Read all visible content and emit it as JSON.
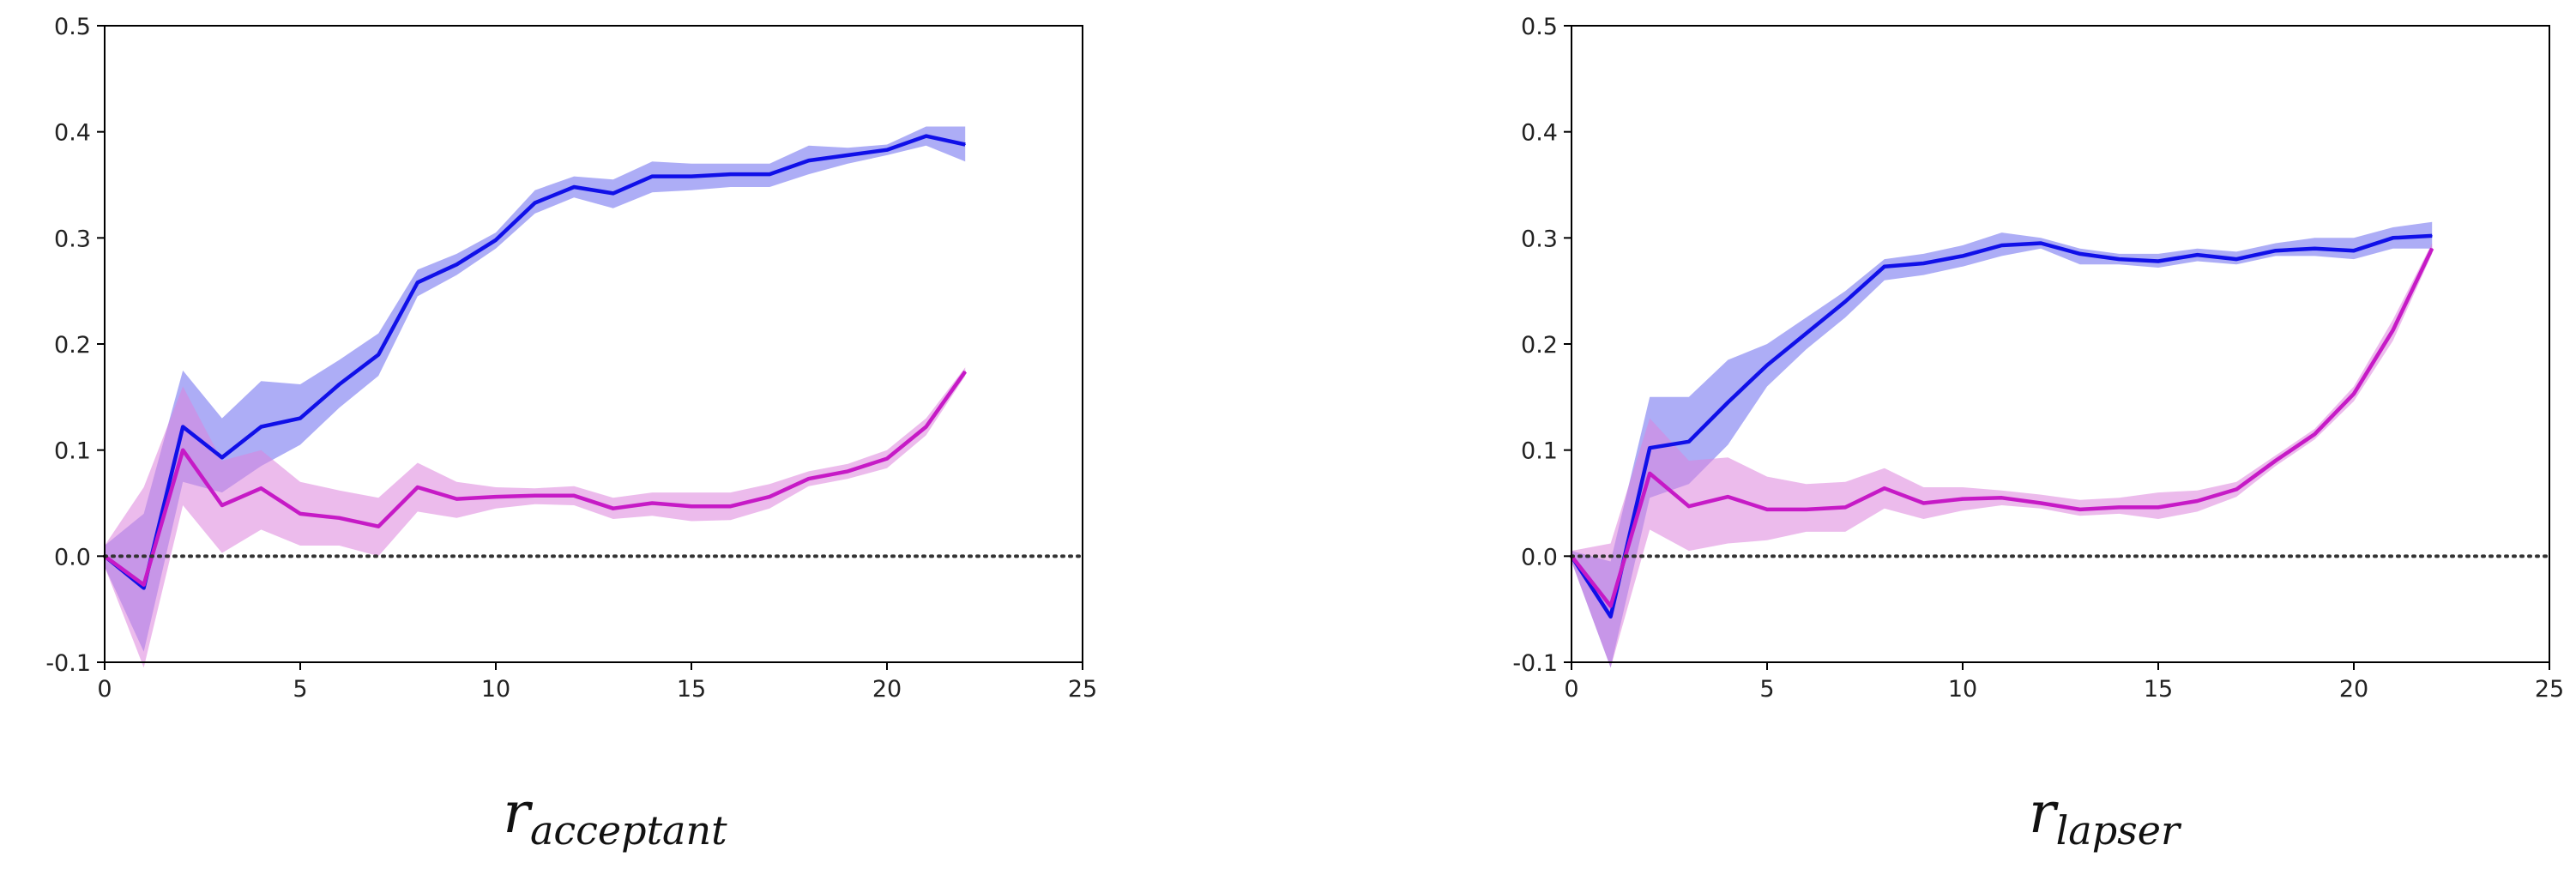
{
  "colors": {
    "blue_line": "#1010e8",
    "blue_band": "#6a6aee",
    "magenta_line": "#c61ac6",
    "magenta_band": "#dc84dc",
    "axis": "#000000",
    "zero_line": "#333333"
  },
  "chart_data": [
    {
      "type": "line",
      "title": "",
      "caption_base": "r",
      "caption_sub": "acceptant",
      "xlabel": "",
      "ylabel": "",
      "xlim": [
        0,
        25
      ],
      "ylim": [
        -0.1,
        0.5
      ],
      "xticks": [
        "0",
        "5",
        "10",
        "15",
        "20",
        "25"
      ],
      "yticks": [
        "-0.1",
        "0.0",
        "0.1",
        "0.2",
        "0.3",
        "0.4",
        "0.5"
      ],
      "reference_line": 0.0,
      "x": [
        0,
        1,
        2,
        3,
        4,
        5,
        6,
        7,
        8,
        9,
        10,
        11,
        12,
        13,
        14,
        15,
        16,
        17,
        18,
        19,
        20,
        21,
        22
      ],
      "series": [
        {
          "name": "blue",
          "color_key": "blue_line",
          "band_color_key": "blue_band",
          "values": [
            0.0,
            -0.03,
            0.122,
            0.093,
            0.122,
            0.13,
            0.162,
            0.19,
            0.258,
            0.275,
            0.298,
            0.333,
            0.348,
            0.342,
            0.358,
            0.358,
            0.36,
            0.36,
            0.373,
            0.378,
            0.383,
            0.396,
            0.388
          ],
          "upper": [
            0.01,
            0.04,
            0.175,
            0.13,
            0.165,
            0.162,
            0.185,
            0.21,
            0.27,
            0.285,
            0.305,
            0.345,
            0.358,
            0.355,
            0.372,
            0.37,
            0.37,
            0.37,
            0.387,
            0.385,
            0.388,
            0.405,
            0.405
          ],
          "lower": [
            -0.01,
            -0.09,
            0.07,
            0.06,
            0.085,
            0.105,
            0.14,
            0.17,
            0.245,
            0.265,
            0.29,
            0.323,
            0.338,
            0.328,
            0.343,
            0.345,
            0.348,
            0.348,
            0.36,
            0.37,
            0.378,
            0.387,
            0.372
          ]
        },
        {
          "name": "magenta",
          "color_key": "magenta_line",
          "band_color_key": "magenta_band",
          "values": [
            0.0,
            -0.027,
            0.1,
            0.048,
            0.064,
            0.04,
            0.036,
            0.028,
            0.065,
            0.054,
            0.056,
            0.057,
            0.057,
            0.045,
            0.05,
            0.047,
            0.047,
            0.056,
            0.073,
            0.08,
            0.092,
            0.122,
            0.174
          ],
          "upper": [
            0.01,
            0.065,
            0.16,
            0.09,
            0.1,
            0.07,
            0.062,
            0.055,
            0.088,
            0.07,
            0.065,
            0.064,
            0.066,
            0.055,
            0.06,
            0.06,
            0.06,
            0.068,
            0.08,
            0.087,
            0.1,
            0.13,
            0.178
          ],
          "lower": [
            -0.01,
            -0.105,
            0.048,
            0.003,
            0.025,
            0.01,
            0.01,
            0.0,
            0.042,
            0.036,
            0.045,
            0.049,
            0.048,
            0.035,
            0.038,
            0.033,
            0.034,
            0.045,
            0.066,
            0.073,
            0.083,
            0.114,
            0.17
          ]
        }
      ]
    },
    {
      "type": "line",
      "title": "",
      "caption_base": "r",
      "caption_sub": "lapser",
      "xlabel": "",
      "ylabel": "",
      "xlim": [
        0,
        25
      ],
      "ylim": [
        -0.1,
        0.5
      ],
      "xticks": [
        "0",
        "5",
        "10",
        "15",
        "20",
        "25"
      ],
      "yticks": [
        "-0.1",
        "0.0",
        "0.1",
        "0.2",
        "0.3",
        "0.4",
        "0.5"
      ],
      "reference_line": 0.0,
      "x": [
        0,
        1,
        2,
        3,
        4,
        5,
        6,
        7,
        8,
        9,
        10,
        11,
        12,
        13,
        14,
        15,
        16,
        17,
        18,
        19,
        20,
        21,
        22
      ],
      "series": [
        {
          "name": "blue",
          "color_key": "blue_line",
          "band_color_key": "blue_band",
          "values": [
            0.0,
            -0.057,
            0.102,
            0.108,
            0.145,
            0.18,
            0.21,
            0.24,
            0.273,
            0.276,
            0.283,
            0.293,
            0.295,
            0.285,
            0.28,
            0.278,
            0.284,
            0.28,
            0.288,
            0.29,
            0.288,
            0.3,
            0.302
          ],
          "upper": [
            0.005,
            -0.005,
            0.15,
            0.15,
            0.185,
            0.2,
            0.225,
            0.25,
            0.28,
            0.285,
            0.293,
            0.305,
            0.3,
            0.29,
            0.285,
            0.285,
            0.29,
            0.287,
            0.295,
            0.3,
            0.3,
            0.31,
            0.315
          ],
          "lower": [
            -0.005,
            -0.105,
            0.055,
            0.068,
            0.105,
            0.16,
            0.195,
            0.225,
            0.26,
            0.265,
            0.273,
            0.283,
            0.29,
            0.275,
            0.275,
            0.272,
            0.278,
            0.275,
            0.283,
            0.283,
            0.28,
            0.29,
            0.29
          ]
        },
        {
          "name": "magenta",
          "color_key": "magenta_line",
          "band_color_key": "magenta_band",
          "values": [
            0.0,
            -0.047,
            0.078,
            0.047,
            0.056,
            0.044,
            0.044,
            0.046,
            0.064,
            0.05,
            0.054,
            0.055,
            0.05,
            0.044,
            0.046,
            0.046,
            0.052,
            0.063,
            0.09,
            0.115,
            0.153,
            0.213,
            0.29
          ],
          "upper": [
            0.005,
            0.012,
            0.13,
            0.09,
            0.093,
            0.075,
            0.068,
            0.07,
            0.083,
            0.065,
            0.065,
            0.062,
            0.058,
            0.053,
            0.055,
            0.06,
            0.062,
            0.07,
            0.095,
            0.12,
            0.16,
            0.223,
            0.295
          ],
          "lower": [
            -0.005,
            -0.105,
            0.025,
            0.005,
            0.012,
            0.015,
            0.023,
            0.023,
            0.045,
            0.035,
            0.043,
            0.048,
            0.045,
            0.038,
            0.04,
            0.035,
            0.042,
            0.056,
            0.085,
            0.11,
            0.146,
            0.203,
            0.285
          ]
        }
      ]
    }
  ]
}
